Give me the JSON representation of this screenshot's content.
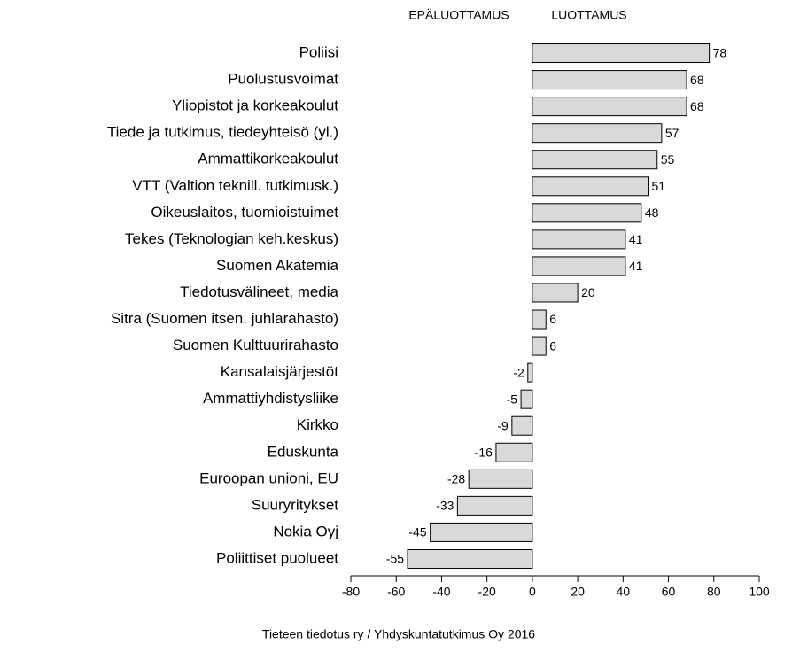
{
  "chart_data": {
    "type": "barh",
    "left_label": "EPÄLUOTTAMUS",
    "right_label": "LUOTTAMUS",
    "source": "Tieteen tiedotus ry / Yhdyskuntatutkimus Oy 2016",
    "categories": [
      "Poliisi",
      "Puolustusvoimat",
      "Yliopistot ja korkeakoulut",
      "Tiede ja tutkimus, tiedeyhteisö (yl.)",
      "Ammattikorkeakoulut",
      "VTT (Valtion teknill. tutkimusk.)",
      "Oikeuslaitos, tuomioistuimet",
      "Tekes (Teknologian keh.keskus)",
      "Suomen Akatemia",
      "Tiedotusvälineet, media",
      "Sitra (Suomen itsen. juhlarahasto)",
      "Suomen Kulttuurirahasto",
      "Kansalaisjärjestöt",
      "Ammattiyhdistysliike",
      "Kirkko",
      "Eduskunta",
      "Euroopan unioni, EU",
      "Suuryritykset",
      "Nokia Oyj",
      "Poliittiset puolueet"
    ],
    "values": [
      78,
      68,
      68,
      57,
      55,
      51,
      48,
      41,
      41,
      20,
      6,
      6,
      -2,
      -5,
      -9,
      -16,
      -28,
      -33,
      -45,
      -55
    ],
    "color": "#d9d9d9",
    "xlim": [
      -80,
      100
    ],
    "xticks": [
      -80,
      -60,
      -40,
      -20,
      0,
      20,
      40,
      60,
      80,
      100
    ]
  }
}
